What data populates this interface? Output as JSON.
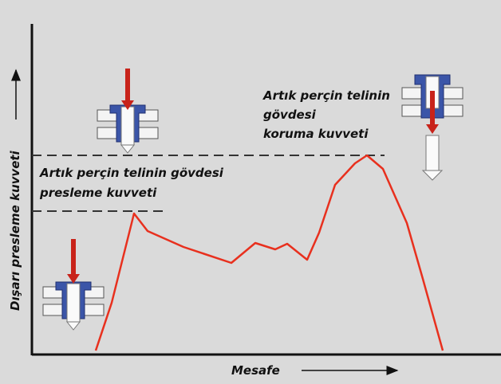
{
  "labels": {
    "press_force": [
      "Artık perçin telinin gövdesi",
      "presleme kuvveti"
    ],
    "protect_force": [
      "Artık perçin telinin",
      "gövdesi",
      "koruma kuvveti"
    ],
    "y_axis": "Dışarı presleme kuvveti",
    "x_axis": "Mesafe"
  }
}
